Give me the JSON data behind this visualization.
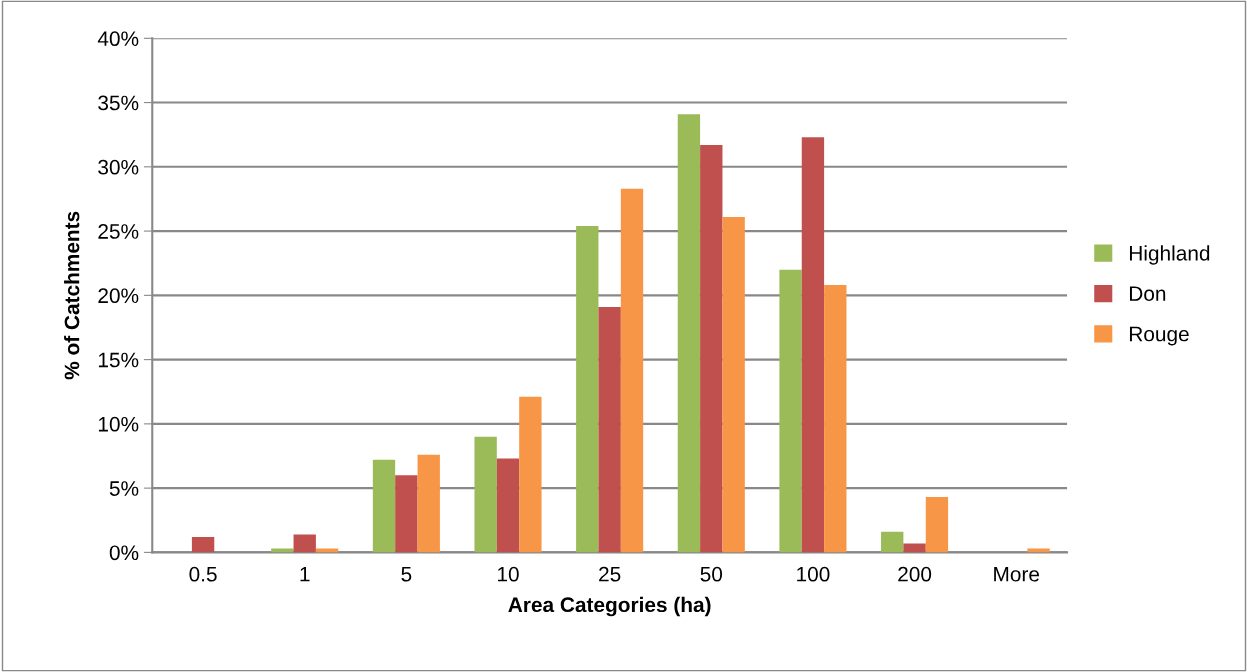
{
  "chart_data": {
    "type": "bar",
    "xlabel": "Area Categories (ha)",
    "ylabel": "% of Catchments",
    "categories": [
      "0.5",
      "1",
      "5",
      "10",
      "25",
      "50",
      "100",
      "200",
      "More"
    ],
    "series": [
      {
        "name": "Highland",
        "color": "#9bbb59",
        "values": [
          0,
          0.3,
          7.2,
          9.0,
          25.4,
          34.1,
          22.0,
          1.6,
          0
        ]
      },
      {
        "name": "Don",
        "color": "#c0504d",
        "values": [
          1.2,
          1.4,
          6.0,
          7.3,
          19.1,
          31.7,
          32.3,
          0.7,
          0
        ]
      },
      {
        "name": "Rouge",
        "color": "#f79646",
        "values": [
          0,
          0.3,
          7.6,
          12.1,
          28.3,
          26.1,
          20.8,
          4.3,
          0.3
        ]
      }
    ],
    "ylim": [
      0,
      40
    ],
    "yticks": [
      {
        "value": 0,
        "label": "0%"
      },
      {
        "value": 5,
        "label": "5%"
      },
      {
        "value": 10,
        "label": "10%"
      },
      {
        "value": 15,
        "label": "15%"
      },
      {
        "value": 20,
        "label": "20%"
      },
      {
        "value": 25,
        "label": "25%"
      },
      {
        "value": 30,
        "label": "30%"
      },
      {
        "value": 35,
        "label": "35%"
      },
      {
        "value": 40,
        "label": "40%"
      }
    ],
    "grid": "y",
    "legend": "right"
  }
}
